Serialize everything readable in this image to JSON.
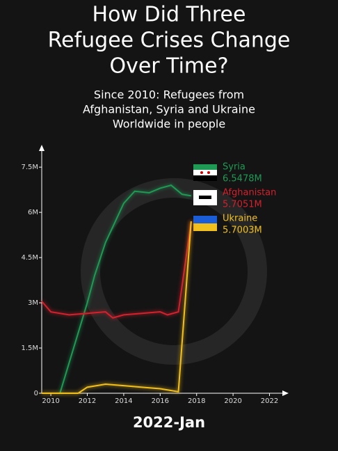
{
  "chart_data": {
    "type": "line",
    "title": [
      "How Did Three",
      "Refugee Crises Change",
      "Over Time?"
    ],
    "subtitle": [
      "Since 2010: Refugees from",
      "Afghanistan, Syria and Ukraine",
      "Worldwide in people"
    ],
    "date_label": "2022-Jan",
    "xlim": [
      2009.5,
      2022.9
    ],
    "xticks": [
      2010,
      2012,
      2014,
      2016,
      2018,
      2020,
      2022
    ],
    "ylim": [
      0,
      8150000
    ],
    "yticks": [
      {
        "value": 0,
        "label": "0"
      },
      {
        "value": 1500000,
        "label": "1.5M"
      },
      {
        "value": 3000000,
        "label": "3M"
      },
      {
        "value": 4500000,
        "label": "4.5M"
      },
      {
        "value": 6000000,
        "label": "6M"
      },
      {
        "value": 7500000,
        "label": "7.5M"
      }
    ],
    "series": [
      {
        "name": "Syria",
        "color": "#1f9a55",
        "x": [
          2010.5,
          2010.85,
          2012,
          2012.4,
          2013,
          2014,
          2014.6,
          2015.4,
          2016,
          2016.6,
          2017.2,
          2017.7
        ],
        "values": [
          0,
          700000,
          3000000,
          3900000,
          5000000,
          6300000,
          6700000,
          6650000,
          6800000,
          6900000,
          6600000,
          6547800
        ],
        "value_labels": [
          null,
          null,
          null,
          null,
          null,
          null,
          null,
          null,
          null,
          null,
          null,
          "6.5478M"
        ]
      },
      {
        "name": "Afghanistan",
        "color": "#d3212d",
        "x": [
          2009.5,
          2010,
          2011,
          2012,
          2013,
          2013.4,
          2014,
          2015,
          2016,
          2016.4,
          2017,
          2017.7
        ],
        "values": [
          3050000,
          2700000,
          2600000,
          2650000,
          2700000,
          2500000,
          2600000,
          2650000,
          2700000,
          2600000,
          2700000,
          5705100
        ],
        "value_labels": [
          null,
          null,
          null,
          null,
          null,
          null,
          null,
          null,
          null,
          null,
          null,
          "5.7051M"
        ]
      },
      {
        "name": "Ukraine",
        "color": "#f2c01c",
        "x": [
          2009.5,
          2011.5,
          2012,
          2013,
          2014,
          2015,
          2016,
          2017,
          2017.7
        ],
        "values": [
          0,
          0,
          200000,
          300000,
          250000,
          200000,
          150000,
          50000,
          5700300
        ],
        "value_labels": [
          null,
          null,
          null,
          null,
          null,
          null,
          null,
          null,
          "5.7003M"
        ]
      }
    ]
  }
}
